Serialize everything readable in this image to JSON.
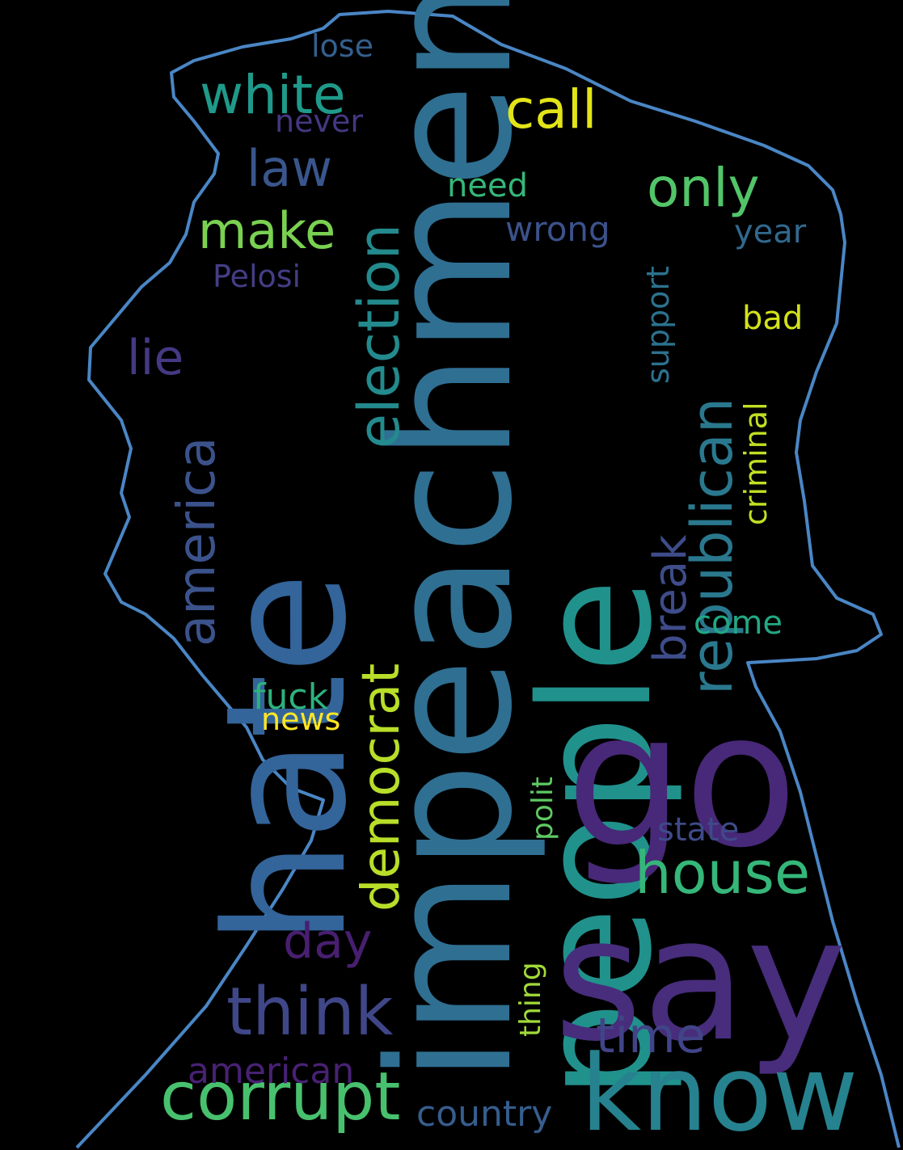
{
  "background_color": "#000000",
  "outline_color": "#4a86c5",
  "words": [
    {
      "text": "impeachment",
      "color": "#2f6f92"
    },
    {
      "text": "hate",
      "color": "#33649a"
    },
    {
      "text": "people",
      "color": "#21918c"
    },
    {
      "text": "go",
      "color": "#482878"
    },
    {
      "text": "say",
      "color": "#472d7b"
    },
    {
      "text": "know",
      "color": "#26828e"
    },
    {
      "text": "corrupt",
      "color": "#48c16e"
    },
    {
      "text": "think",
      "color": "#3f4788"
    },
    {
      "text": "house",
      "color": "#35b779"
    },
    {
      "text": "democrat",
      "color": "#b8de29"
    },
    {
      "text": "republican",
      "color": "#2a788e"
    },
    {
      "text": "election",
      "color": "#238a8d"
    },
    {
      "text": "america",
      "color": "#3b528b"
    },
    {
      "text": "white",
      "color": "#1f9a8a"
    },
    {
      "text": "call",
      "color": "#e2e418"
    },
    {
      "text": "only",
      "color": "#52c569"
    },
    {
      "text": "law",
      "color": "#39568c"
    },
    {
      "text": "make",
      "color": "#7ad151"
    },
    {
      "text": "lie",
      "color": "#443983"
    },
    {
      "text": "day",
      "color": "#481f70"
    },
    {
      "text": "time",
      "color": "#414487"
    },
    {
      "text": "break",
      "color": "#3e4c8a"
    },
    {
      "text": "american",
      "color": "#482173"
    },
    {
      "text": "country",
      "color": "#365d8d"
    },
    {
      "text": "criminal",
      "color": "#c2df23"
    },
    {
      "text": "support",
      "color": "#2c728e"
    },
    {
      "text": "polit",
      "color": "#5ec962"
    },
    {
      "text": "thing",
      "color": "#a0da39"
    },
    {
      "text": "state",
      "color": "#3e4a89"
    },
    {
      "text": "come",
      "color": "#22a884"
    },
    {
      "text": "fuck",
      "color": "#2db27d"
    },
    {
      "text": "news",
      "color": "#fde725"
    },
    {
      "text": "bad",
      "color": "#d2e21b"
    },
    {
      "text": "year",
      "color": "#31688e"
    },
    {
      "text": "wrong",
      "color": "#3b528b"
    },
    {
      "text": "need",
      "color": "#35b779"
    },
    {
      "text": "Pelosi",
      "color": "#433e85"
    },
    {
      "text": "never",
      "color": "#453781"
    },
    {
      "text": "lose",
      "color": "#355f8d"
    }
  ]
}
